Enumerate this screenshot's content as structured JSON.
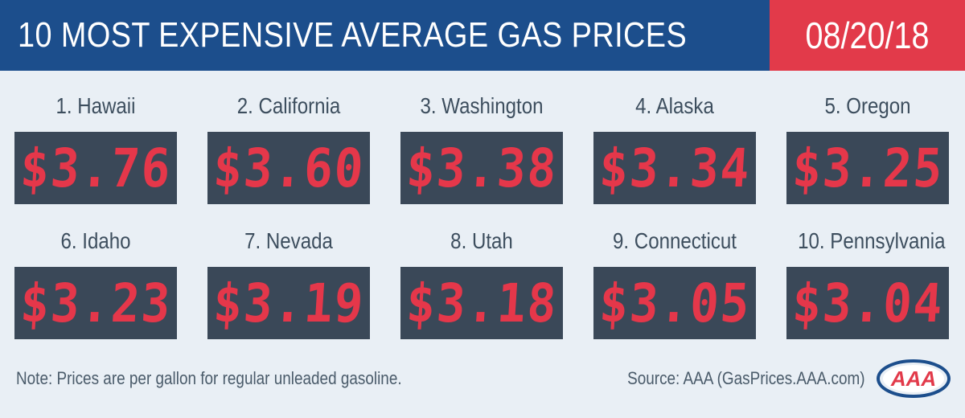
{
  "header": {
    "title": "10 MOST EXPENSIVE AVERAGE GAS PRICES",
    "date": "08/20/18"
  },
  "states": [
    {
      "label": "1. Hawaii",
      "price": "$3.76"
    },
    {
      "label": "2. California",
      "price": "$3.60"
    },
    {
      "label": "3. Washington",
      "price": "$3.38"
    },
    {
      "label": "4. Alaska",
      "price": "$3.34"
    },
    {
      "label": "5. Oregon",
      "price": "$3.25"
    },
    {
      "label": "6. Idaho",
      "price": "$3.23"
    },
    {
      "label": "7. Nevada",
      "price": "$3.19"
    },
    {
      "label": "8. Utah",
      "price": "$3.18"
    },
    {
      "label": "9. Connecticut",
      "price": "$3.05"
    },
    {
      "label": "10. Pennsylvania",
      "price": "$3.04"
    }
  ],
  "footer": {
    "note": "Note: Prices are per gallon for regular unleaded gasoline.",
    "source": "Source: AAA (GasPrices.AAA.com)",
    "logo_text": "AAA"
  },
  "colors": {
    "header_blue": "#1c4e8c",
    "header_red": "#e23a4a",
    "price_box": "#3a4858",
    "price_digit": "#e5374a",
    "background": "#e9eff5"
  }
}
